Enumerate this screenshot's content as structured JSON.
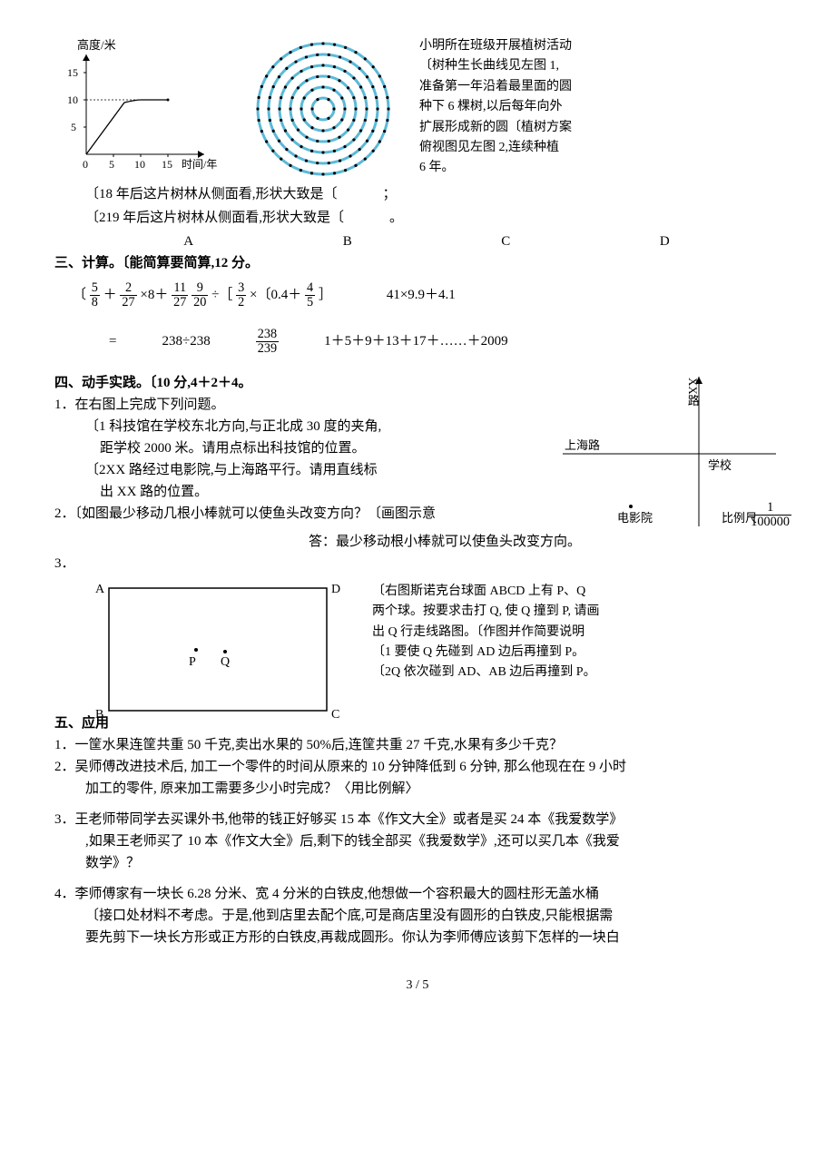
{
  "tree": {
    "chart": {
      "type": "line",
      "ylabel": "高度/米",
      "xlabel": "时间/年",
      "xticks": [
        0,
        5,
        10,
        15
      ],
      "yticks": [
        5,
        10,
        15
      ],
      "xlim": [
        0,
        18
      ],
      "ylim": [
        0,
        16
      ],
      "series": [
        {
          "points": [
            [
              0,
              0
            ],
            [
              7,
              9.5
            ],
            [
              10,
              10
            ],
            [
              15,
              10
            ]
          ],
          "color": "#000000",
          "line_width": 1.2
        }
      ],
      "axis_color": "#000000",
      "tick_fontsize": 12,
      "label_fontsize": 13,
      "background": "#ffffff"
    },
    "rings": {
      "type": "concentric-dots",
      "ring_count": 6,
      "dots_per_ring": [
        6,
        12,
        18,
        24,
        30,
        36
      ],
      "dot_color": "#000000",
      "ring_color": "#5bb9d8",
      "ring_width": 3,
      "background": "#ffffff"
    },
    "desc_lines": [
      "小明所在班级开展植树活动",
      "〔树种生长曲线见左图 1,",
      "准备第一年沿着最里面的圆",
      "种下 6 棵树,以后每年向外",
      "扩展形成新的圆〔植树方案",
      "俯视图见左图 2,连续种植",
      "6 年。"
    ],
    "q1": "〔18 年后这片树林从侧面看,形状大致是〔",
    "q1_suffix": "；",
    "q2": "〔219 年后这片树林从侧面看,形状大致是〔",
    "q2_suffix": "。",
    "options": [
      "A",
      "B",
      "C",
      "D"
    ]
  },
  "section3": {
    "title": "三、计算。〔能简算要简算,12 分。",
    "line1": {
      "prefix": "〔",
      "f1_num": "5",
      "f1_den": "8",
      "plus1": "＋",
      "f2_num": "2",
      "f2_den": "27",
      "times8": "×8＋",
      "f3_num": "11",
      "f3_den": "27",
      "sp": " ",
      "f4_num": "9",
      "f4_den": "20",
      "div": "÷［",
      "f5_num": "3",
      "f5_den": "2",
      "times": "×〔0.4＋",
      "f6_num": "4",
      "f6_den": "5",
      "end": "］",
      "right": "41×9.9＋4.1"
    },
    "line2": {
      "eq": "=",
      "a": "238÷238",
      "b_num": "238",
      "b_den": "239",
      "c": "1＋5＋9＋13＋17＋……＋2009"
    }
  },
  "section4": {
    "title": "四、动手实践。〔10 分,4＋2＋4。",
    "q1": "1．在右图上完成下列问题。",
    "q1a": "〔1 科技馆在学校东北方向,与正北成 30 度的夹角,",
    "q1a2": "距学校 2000 米。请用点标出科技馆的位置。",
    "q1b": "〔2XX 路经过电影院,与上海路平行。请用直线标",
    "q1b2": "出 XX 路的位置。",
    "q2": "2．〔如图最少移动几根小棒就可以使鱼头改变方向？〔画图示意",
    "q2ans": "答：最少移动根小棒就可以使鱼头改变方向。",
    "q3": "3．",
    "q3_right": [
      "〔右图斯诺克台球面 ABCD 上有 P、Q",
      "两个球。按要求击打 Q, 使 Q 撞到 P, 请画",
      "出 Q 行走线路图。〔作图并作简要说明",
      "〔1 要使 Q 先碰到 AD 边后再撞到 P。",
      "〔2Q 依次碰到 AD、AB 边后再撞到 P。"
    ],
    "map": {
      "road1": "上海路",
      "school": "学校",
      "cinema": "电影院",
      "north": "XX路",
      "scale_label": "比例尺",
      "scale_num": "1",
      "scale_den": "100000",
      "line_color": "#000000"
    },
    "snooker": {
      "labels": {
        "A": "A",
        "B": "B",
        "C": "C",
        "D": "D",
        "P": "P",
        "Q": "Q"
      },
      "border_color": "#000000",
      "border_width": 1.5,
      "P": [
        0.4,
        0.5
      ],
      "Q": [
        0.52,
        0.52
      ]
    }
  },
  "section5": {
    "title": "五、应用",
    "q1": "1．一筐水果连筐共重 50 千克,卖出水果的 50%后,连筐共重 27 千克,水果有多少千克？",
    "q2a": "2．吴师傅改进技术后, 加工一个零件的时间从原来的 10 分钟降低到 6 分钟, 那么他现在在 9 小时",
    "q2b": "加工的零件, 原来加工需要多少小时完成？〈用比例解〉",
    "q3a": "3．王老师带同学去买课外书,他带的钱正好够买 15 本《作文大全》或者是买 24 本《我爱数学》",
    "q3b": ",如果王老师买了 10 本《作文大全》后,剩下的钱全部买《我爱数学》,还可以买几本《我爱",
    "q3c": "数学》？",
    "q4a": "4．李师傅家有一块长 6.28 分米、宽 4 分米的白铁皮,他想做一个容积最大的圆柱形无盖水桶",
    "q4b": "〔接口处材料不考虑。于是,他到店里去配个底,可是商店里没有圆形的白铁皮,只能根据需",
    "q4c": "要先剪下一块长方形或正方形的白铁皮,再裁成圆形。你认为李师傅应该剪下怎样的一块白"
  },
  "footer": "3 / 5"
}
